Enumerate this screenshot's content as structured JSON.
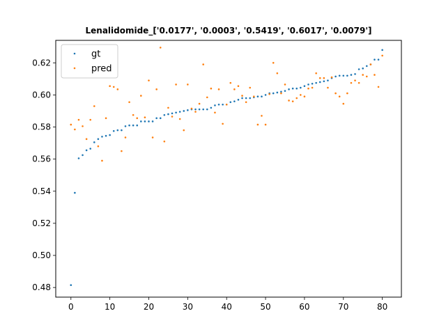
{
  "chart_data": {
    "type": "scatter",
    "title": "Lenalidomide_['0.0177', '0.0003', '0.5419', '0.6017', '0.0079']",
    "xlabel": "",
    "ylabel": "",
    "xlim": [
      -3.9,
      84.9
    ],
    "ylim": [
      0.474,
      0.634
    ],
    "xticks": [
      0,
      10,
      20,
      30,
      40,
      50,
      60,
      70,
      80
    ],
    "yticks": [
      0.48,
      0.5,
      0.52,
      0.54,
      0.56,
      0.58,
      0.6,
      0.62
    ],
    "grid": false,
    "legend": "top-left",
    "series": [
      {
        "name": "gt",
        "color": "#1f77b4",
        "x": [
          0,
          1,
          2,
          3,
          4,
          5,
          6,
          7,
          8,
          9,
          10,
          11,
          12,
          13,
          14,
          15,
          16,
          17,
          18,
          19,
          20,
          21,
          22,
          23,
          24,
          25,
          26,
          27,
          28,
          29,
          30,
          31,
          32,
          33,
          34,
          35,
          36,
          37,
          38,
          39,
          40,
          41,
          42,
          43,
          44,
          45,
          46,
          47,
          48,
          49,
          50,
          51,
          52,
          53,
          54,
          55,
          56,
          57,
          58,
          59,
          60,
          61,
          62,
          63,
          64,
          65,
          66,
          67,
          68,
          69,
          70,
          71,
          72,
          73,
          74,
          75,
          76,
          77,
          78,
          79,
          80
        ],
        "y": [
          0.4815,
          0.539,
          0.5605,
          0.5625,
          0.5655,
          0.5665,
          0.5705,
          0.5725,
          0.574,
          0.5745,
          0.575,
          0.5775,
          0.578,
          0.578,
          0.5805,
          0.581,
          0.581,
          0.581,
          0.5835,
          0.5835,
          0.5835,
          0.5835,
          0.5855,
          0.5855,
          0.5875,
          0.588,
          0.5885,
          0.589,
          0.5895,
          0.59,
          0.5905,
          0.591,
          0.591,
          0.591,
          0.591,
          0.591,
          0.592,
          0.5935,
          0.594,
          0.594,
          0.594,
          0.5955,
          0.596,
          0.597,
          0.598,
          0.598,
          0.598,
          0.5985,
          0.599,
          0.599,
          0.6,
          0.601,
          0.601,
          0.6015,
          0.602,
          0.6025,
          0.6035,
          0.604,
          0.604,
          0.6045,
          0.6055,
          0.6065,
          0.607,
          0.6075,
          0.608,
          0.6085,
          0.609,
          0.6105,
          0.6115,
          0.612,
          0.612,
          0.612,
          0.6125,
          0.613,
          0.616,
          0.6165,
          0.618,
          0.619,
          0.622,
          0.622,
          0.628
        ]
      },
      {
        "name": "pred",
        "color": "#ff7f0e",
        "x": [
          0,
          1,
          2,
          3,
          4,
          5,
          6,
          7,
          8,
          9,
          10,
          11,
          12,
          13,
          14,
          15,
          16,
          17,
          18,
          19,
          20,
          21,
          22,
          23,
          24,
          25,
          26,
          27,
          28,
          29,
          30,
          31,
          32,
          33,
          34,
          35,
          36,
          37,
          38,
          39,
          40,
          41,
          42,
          43,
          44,
          45,
          46,
          47,
          48,
          49,
          50,
          51,
          52,
          53,
          54,
          55,
          56,
          57,
          58,
          59,
          60,
          61,
          62,
          63,
          64,
          65,
          66,
          67,
          68,
          69,
          70,
          71,
          72,
          73,
          74,
          75,
          76,
          77,
          78,
          79,
          80
        ],
        "y": [
          0.5815,
          0.5785,
          0.5845,
          0.5805,
          0.5725,
          0.5845,
          0.593,
          0.568,
          0.559,
          0.5855,
          0.6055,
          0.605,
          0.6035,
          0.565,
          0.5735,
          0.5955,
          0.5875,
          0.5855,
          0.5995,
          0.586,
          0.609,
          0.5735,
          0.6035,
          0.6295,
          0.571,
          0.592,
          0.5865,
          0.6065,
          0.585,
          0.578,
          0.6065,
          0.5915,
          0.5895,
          0.5945,
          0.619,
          0.5985,
          0.604,
          0.589,
          0.6035,
          0.582,
          0.594,
          0.6075,
          0.6035,
          0.6055,
          0.5995,
          0.5955,
          0.6045,
          0.599,
          0.5815,
          0.587,
          0.5815,
          0.6005,
          0.62,
          0.6135,
          0.601,
          0.6065,
          0.5965,
          0.596,
          0.598,
          0.6,
          0.599,
          0.604,
          0.6045,
          0.6135,
          0.6105,
          0.6105,
          0.6045,
          0.611,
          0.601,
          0.599,
          0.5945,
          0.601,
          0.6075,
          0.609,
          0.6075,
          0.6125,
          0.6115,
          0.619,
          0.6125,
          0.605,
          0.6245
        ]
      }
    ]
  }
}
